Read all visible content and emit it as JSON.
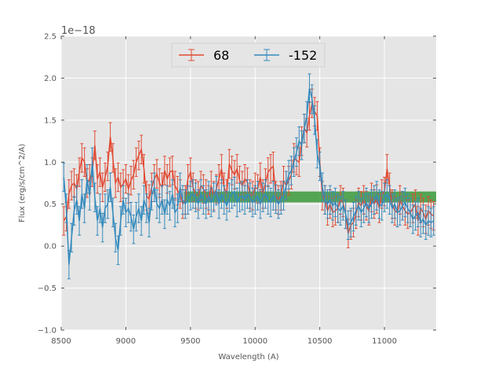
{
  "chart_data": {
    "type": "line",
    "xlabel": "Wavelength (A)",
    "ylabel": "Flux (erg/s/cm^2/A)",
    "y_offset_label": "1e−18",
    "xlim": [
      8500,
      11400
    ],
    "ylim": [
      -1.0,
      2.5
    ],
    "y_scale_factor": 1e-18,
    "xticks": [
      8500,
      9000,
      9500,
      10000,
      10500,
      11000
    ],
    "xtick_labels": [
      "8500",
      "9000",
      "9500",
      "10000",
      "10500",
      "11000"
    ],
    "yticks": [
      -1.0,
      -0.5,
      0.0,
      0.5,
      1.0,
      1.5,
      2.0,
      2.5
    ],
    "ytick_labels": [
      "−1.0",
      "−0.5",
      "0.0",
      "0.5",
      "1.0",
      "1.5",
      "2.0",
      "2.5"
    ],
    "grid": true,
    "legend_position": "top-center",
    "background": "#e5e5e5",
    "band": {
      "x_start": 9450,
      "x_end": 11400,
      "y_low": 0.52,
      "y_high": 0.65,
      "color": "#3a9a3a"
    },
    "series": [
      {
        "name": "68",
        "color": "#e24a33",
        "x": [
          8520,
          8540,
          8560,
          8580,
          8600,
          8620,
          8640,
          8660,
          8680,
          8700,
          8720,
          8740,
          8760,
          8780,
          8800,
          8820,
          8840,
          8860,
          8880,
          8900,
          8920,
          8940,
          8960,
          8980,
          9000,
          9020,
          9040,
          9060,
          9080,
          9100,
          9120,
          9140,
          9160,
          9180,
          9200,
          9220,
          9240,
          9260,
          9280,
          9300,
          9320,
          9340,
          9360,
          9380,
          9400,
          9420,
          9440,
          9460,
          9480,
          9500,
          9520,
          9540,
          9560,
          9580,
          9600,
          9620,
          9640,
          9660,
          9680,
          9700,
          9720,
          9740,
          9760,
          9780,
          9800,
          9820,
          9840,
          9860,
          9880,
          9900,
          9920,
          9940,
          9960,
          9980,
          10000,
          10020,
          10040,
          10060,
          10080,
          10100,
          10120,
          10140,
          10160,
          10180,
          10200,
          10220,
          10240,
          10260,
          10280,
          10300,
          10320,
          10340,
          10360,
          10380,
          10400,
          10420,
          10440,
          10460,
          10480,
          10500,
          10520,
          10540,
          10560,
          10580,
          10600,
          10620,
          10640,
          10660,
          10680,
          10700,
          10720,
          10740,
          10760,
          10780,
          10800,
          10820,
          10840,
          10860,
          10880,
          10900,
          10920,
          10940,
          10960,
          10980,
          11000,
          11020,
          11040,
          11060,
          11080,
          11100,
          11120,
          11140,
          11160,
          11180,
          11200,
          11220,
          11240,
          11260,
          11280,
          11300,
          11320,
          11340,
          11360,
          11380
        ],
        "values": [
          0.3,
          0.35,
          0.62,
          0.72,
          0.75,
          0.68,
          0.88,
          1.05,
          1.0,
          0.75,
          0.8,
          0.88,
          1.2,
          0.8,
          0.88,
          0.7,
          0.82,
          0.95,
          1.3,
          1.05,
          0.75,
          0.82,
          0.7,
          0.74,
          0.8,
          0.68,
          0.78,
          0.85,
          1.0,
          1.08,
          1.15,
          0.92,
          0.6,
          0.56,
          0.7,
          0.8,
          0.86,
          0.75,
          0.7,
          0.9,
          0.8,
          0.88,
          0.9,
          0.72,
          0.66,
          0.62,
          0.5,
          0.55,
          0.8,
          0.88,
          0.7,
          0.62,
          0.6,
          0.72,
          0.68,
          0.62,
          0.55,
          0.72,
          0.6,
          0.68,
          0.8,
          0.92,
          0.7,
          0.62,
          0.98,
          0.9,
          0.85,
          0.92,
          0.78,
          0.72,
          0.8,
          0.76,
          0.62,
          0.6,
          0.7,
          0.68,
          0.82,
          0.62,
          0.75,
          0.88,
          0.92,
          0.95,
          0.6,
          0.55,
          0.6,
          0.78,
          0.72,
          0.78,
          0.85,
          1.05,
          1.02,
          1.0,
          1.25,
          1.4,
          1.35,
          1.55,
          1.7,
          1.6,
          1.55,
          1.0,
          0.6,
          0.55,
          0.42,
          0.5,
          0.4,
          0.42,
          0.45,
          0.55,
          0.52,
          0.38,
          0.15,
          0.25,
          0.28,
          0.38,
          0.52,
          0.48,
          0.55,
          0.48,
          0.42,
          0.58,
          0.5,
          0.56,
          0.45,
          0.62,
          0.65,
          0.92,
          0.7,
          0.5,
          0.42,
          0.4,
          0.55,
          0.48,
          0.42,
          0.38,
          0.4,
          0.45,
          0.5,
          0.3,
          0.45,
          0.4,
          0.32,
          0.42,
          0.38,
          0.36
        ],
        "err": 0.17
      },
      {
        "name": "-152",
        "color": "#348abd",
        "x": [
          8520,
          8540,
          8560,
          8580,
          8600,
          8620,
          8640,
          8660,
          8680,
          8700,
          8720,
          8740,
          8760,
          8780,
          8800,
          8820,
          8840,
          8860,
          8880,
          8900,
          8920,
          8940,
          8960,
          8980,
          9000,
          9020,
          9040,
          9060,
          9080,
          9100,
          9120,
          9140,
          9160,
          9180,
          9200,
          9220,
          9240,
          9260,
          9280,
          9300,
          9320,
          9340,
          9360,
          9380,
          9400,
          9420,
          9440,
          9460,
          9480,
          9500,
          9520,
          9540,
          9560,
          9580,
          9600,
          9620,
          9640,
          9660,
          9680,
          9700,
          9720,
          9740,
          9760,
          9780,
          9800,
          9820,
          9840,
          9860,
          9880,
          9900,
          9920,
          9940,
          9960,
          9980,
          10000,
          10020,
          10040,
          10060,
          10080,
          10100,
          10120,
          10140,
          10160,
          10180,
          10200,
          10220,
          10240,
          10260,
          10280,
          10300,
          10320,
          10340,
          10360,
          10380,
          10400,
          10420,
          10440,
          10460,
          10480,
          10500,
          10520,
          10540,
          10560,
          10580,
          10600,
          10620,
          10640,
          10660,
          10680,
          10700,
          10720,
          10740,
          10760,
          10780,
          10800,
          10820,
          10840,
          10860,
          10880,
          10900,
          10920,
          10940,
          10960,
          10980,
          11000,
          11020,
          11040,
          11060,
          11080,
          11100,
          11120,
          11140,
          11160,
          11180,
          11200,
          11220,
          11240,
          11260,
          11280,
          11300,
          11320,
          11340,
          11360,
          11380
        ],
        "values": [
          0.82,
          0.45,
          -0.22,
          0.1,
          0.42,
          0.55,
          0.3,
          0.62,
          0.45,
          0.8,
          0.6,
          1.0,
          0.58,
          0.3,
          0.45,
          0.22,
          0.45,
          0.5,
          0.7,
          0.4,
          0.1,
          -0.05,
          0.3,
          0.55,
          0.4,
          0.45,
          0.35,
          0.2,
          0.35,
          0.45,
          0.3,
          0.55,
          0.45,
          0.28,
          0.6,
          0.7,
          0.5,
          0.45,
          0.55,
          0.38,
          0.55,
          0.48,
          0.62,
          0.4,
          0.45,
          0.7,
          0.55,
          0.5,
          0.55,
          0.6,
          0.62,
          0.58,
          0.5,
          0.62,
          0.55,
          0.5,
          0.6,
          0.52,
          0.58,
          0.66,
          0.5,
          0.62,
          0.55,
          0.48,
          0.58,
          0.62,
          0.65,
          0.52,
          0.58,
          0.6,
          0.55,
          0.62,
          0.58,
          0.52,
          0.55,
          0.6,
          0.5,
          0.58,
          0.62,
          0.55,
          0.52,
          0.6,
          0.56,
          0.5,
          0.55,
          0.6,
          0.72,
          0.85,
          0.9,
          1.0,
          1.12,
          1.25,
          1.2,
          1.4,
          1.55,
          1.88,
          1.75,
          1.5,
          1.1,
          0.95,
          0.7,
          0.55,
          0.5,
          0.55,
          0.48,
          0.52,
          0.45,
          0.42,
          0.48,
          0.38,
          0.25,
          0.28,
          0.35,
          0.42,
          0.48,
          0.4,
          0.45,
          0.52,
          0.45,
          0.5,
          0.55,
          0.6,
          0.5,
          0.48,
          0.58,
          0.62,
          0.55,
          0.45,
          0.5,
          0.4,
          0.42,
          0.48,
          0.52,
          0.45,
          0.4,
          0.32,
          0.36,
          0.4,
          0.28,
          0.32,
          0.25,
          0.3,
          0.28,
          0.3
        ],
        "err": 0.17
      }
    ]
  }
}
